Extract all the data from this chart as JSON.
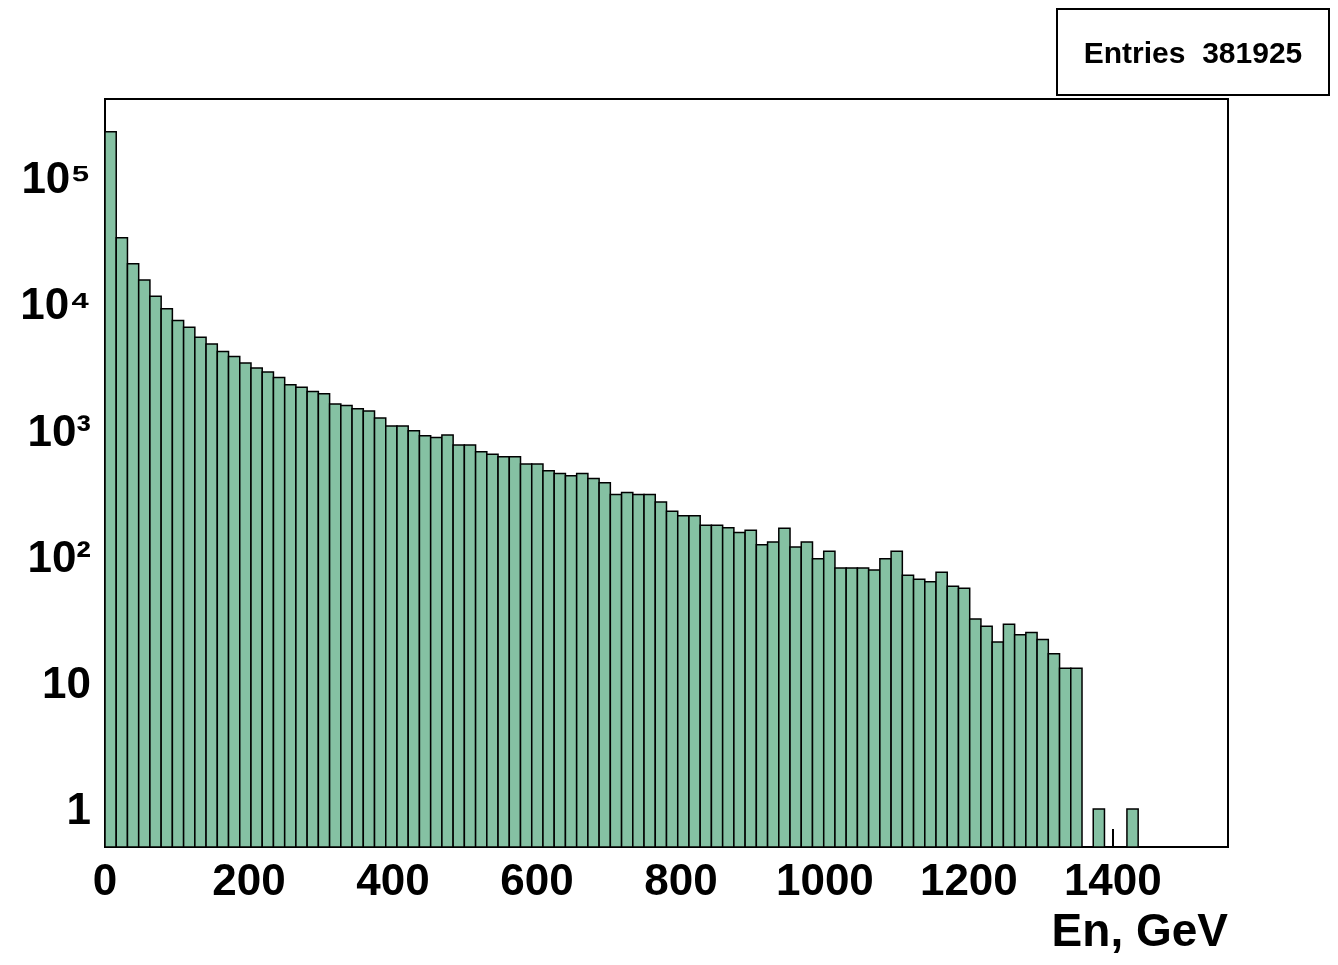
{
  "chart_data": {
    "type": "histogram",
    "xlabel": "En, GeV",
    "annotations": [
      "Entries  381925"
    ],
    "bins": [
      0,
      15.6,
      31.2,
      46.8,
      62.4,
      78,
      93.6,
      109.2,
      124.8,
      140.4,
      156,
      171.6,
      187.2,
      202.8,
      218.4,
      234,
      249.6,
      265.2,
      280.8,
      296.4,
      312,
      327.6,
      343.2,
      358.8,
      374.4,
      390,
      405.6,
      421.2,
      436.8,
      452.4,
      468,
      483.6,
      499.2,
      514.8,
      530.4,
      546,
      561.6,
      577.2,
      592.8,
      608.4,
      624,
      639.6,
      655.2,
      670.8,
      686.4,
      702,
      717.6,
      733.2,
      748.8,
      764.4,
      780,
      795.6,
      811.2,
      826.8,
      842.4,
      858,
      873.6,
      889.2,
      904.8,
      920.4,
      936,
      951.6,
      967.2,
      982.8,
      998.4,
      1014,
      1029.6,
      1045.2,
      1060.8,
      1076.4,
      1092,
      1107.6,
      1123.2,
      1138.8,
      1154.4,
      1170,
      1185.6,
      1201.2,
      1216.8,
      1232.4,
      1248,
      1263.6,
      1279.2,
      1294.8,
      1310.4,
      1326,
      1341.6,
      1357.2,
      1372.8,
      1388.4,
      1404,
      1419.6,
      1435.2,
      1450.8,
      1466.4,
      1482,
      1497.6,
      1513.2,
      1528.8,
      1544.4,
      1560
    ],
    "values": [
      231000,
      33500,
      20800,
      15500,
      11500,
      9150,
      7380,
      6530,
      5440,
      4820,
      4210,
      3840,
      3410,
      3110,
      2890,
      2620,
      2290,
      2190,
      2030,
      1940,
      1610,
      1570,
      1480,
      1420,
      1250,
      1080,
      1080,
      990,
      905,
      875,
      918,
      765,
      765,
      676,
      645,
      617,
      617,
      540,
      540,
      477,
      455,
      435,
      455,
      415,
      383,
      310,
      321,
      310,
      310,
      270,
      228,
      210,
      210,
      177,
      177,
      169,
      155,
      161,
      124,
      130,
      167,
      119,
      130,
      96,
      110,
      81,
      81,
      81,
      78,
      96,
      110,
      71,
      66,
      63,
      75,
      58,
      56,
      32,
      28,
      21,
      29,
      24,
      25,
      22,
      17,
      13,
      13,
      null,
      1,
      null,
      null,
      1,
      null,
      null,
      null,
      null,
      null,
      null,
      null,
      null
    ],
    "color": "#85c1a3",
    "log": "y",
    "xlim": [
      0,
      1560
    ],
    "xticks": [
      0,
      200,
      400,
      600,
      800,
      1000,
      1200,
      1400
    ],
    "ylim": [
      0.5,
      420000
    ],
    "yticks": [
      1,
      10,
      {
        "value": 100,
        "label": "10²"
      },
      {
        "value": 1000,
        "label": "10³"
      },
      {
        "value": 10000,
        "label": "10⁴"
      },
      {
        "value": 100000,
        "label": "10⁵"
      }
    ],
    "grid": false
  }
}
